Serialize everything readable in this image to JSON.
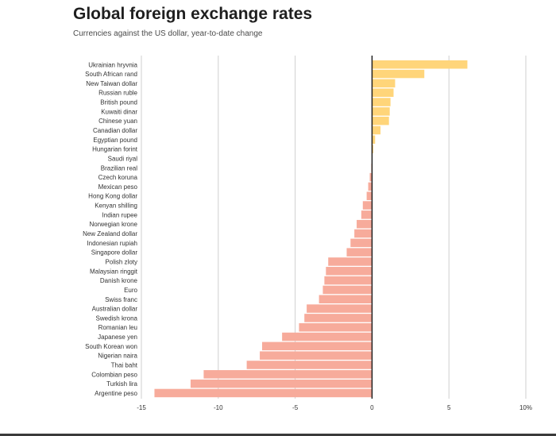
{
  "header": {
    "title": "Global foreign exchange rates",
    "subtitle": "Currencies against the US dollar, year-to-date change"
  },
  "colors": {
    "positive": "#ffd57a",
    "negative": "#f7ab9b",
    "grid": "#cfcfcf",
    "zero_line": "#222222",
    "label": "#333333"
  },
  "chart_data": {
    "type": "bar",
    "orientation": "horizontal",
    "title": "Global foreign exchange rates",
    "subtitle": "Currencies against the US dollar, year-to-date change",
    "xlim": [
      -15,
      10
    ],
    "xticks": [
      -15,
      -10,
      -5,
      0,
      5,
      10
    ],
    "xtick_labels": [
      "-15",
      "-10",
      "-5",
      "0",
      "5",
      "10%"
    ],
    "grid": true,
    "categories": [
      "Ukrainian hryvnia",
      "South African rand",
      "New Taiwan dollar",
      "Russian ruble",
      "British pound",
      "Kuwaiti dinar",
      "Chinese yuan",
      "Canadian dollar",
      "Egyptian pound",
      "Hungarian forint",
      "Saudi riyal",
      "Brazilian real",
      "Czech koruna",
      "Mexican peso",
      "Hong Kong dollar",
      "Kenyan shilling",
      "Indian rupee",
      "Norwegian krone",
      "New Zealand dollar",
      "Indonesian rupiah",
      "Singapore dollar",
      "Polish zloty",
      "Malaysian ringgit",
      "Danish krone",
      "Euro",
      "Swiss franc",
      "Australian dollar",
      "Swedish krona",
      "Romanian leu",
      "Japanese yen",
      "South Korean won",
      "Nigerian naira",
      "Thai baht",
      "Colombian peso",
      "Turkish lira",
      "Argentine peso"
    ],
    "values": [
      6.2,
      3.4,
      1.5,
      1.4,
      1.2,
      1.15,
      1.1,
      0.55,
      0.2,
      0.08,
      0.0,
      -0.05,
      -0.15,
      -0.25,
      -0.35,
      -0.6,
      -0.7,
      -1.0,
      -1.15,
      -1.4,
      -1.65,
      -2.85,
      -3.0,
      -3.1,
      -3.2,
      -3.45,
      -4.25,
      -4.4,
      -4.75,
      -5.85,
      -7.15,
      -7.3,
      -8.15,
      -10.95,
      -11.8,
      -14.15
    ]
  }
}
